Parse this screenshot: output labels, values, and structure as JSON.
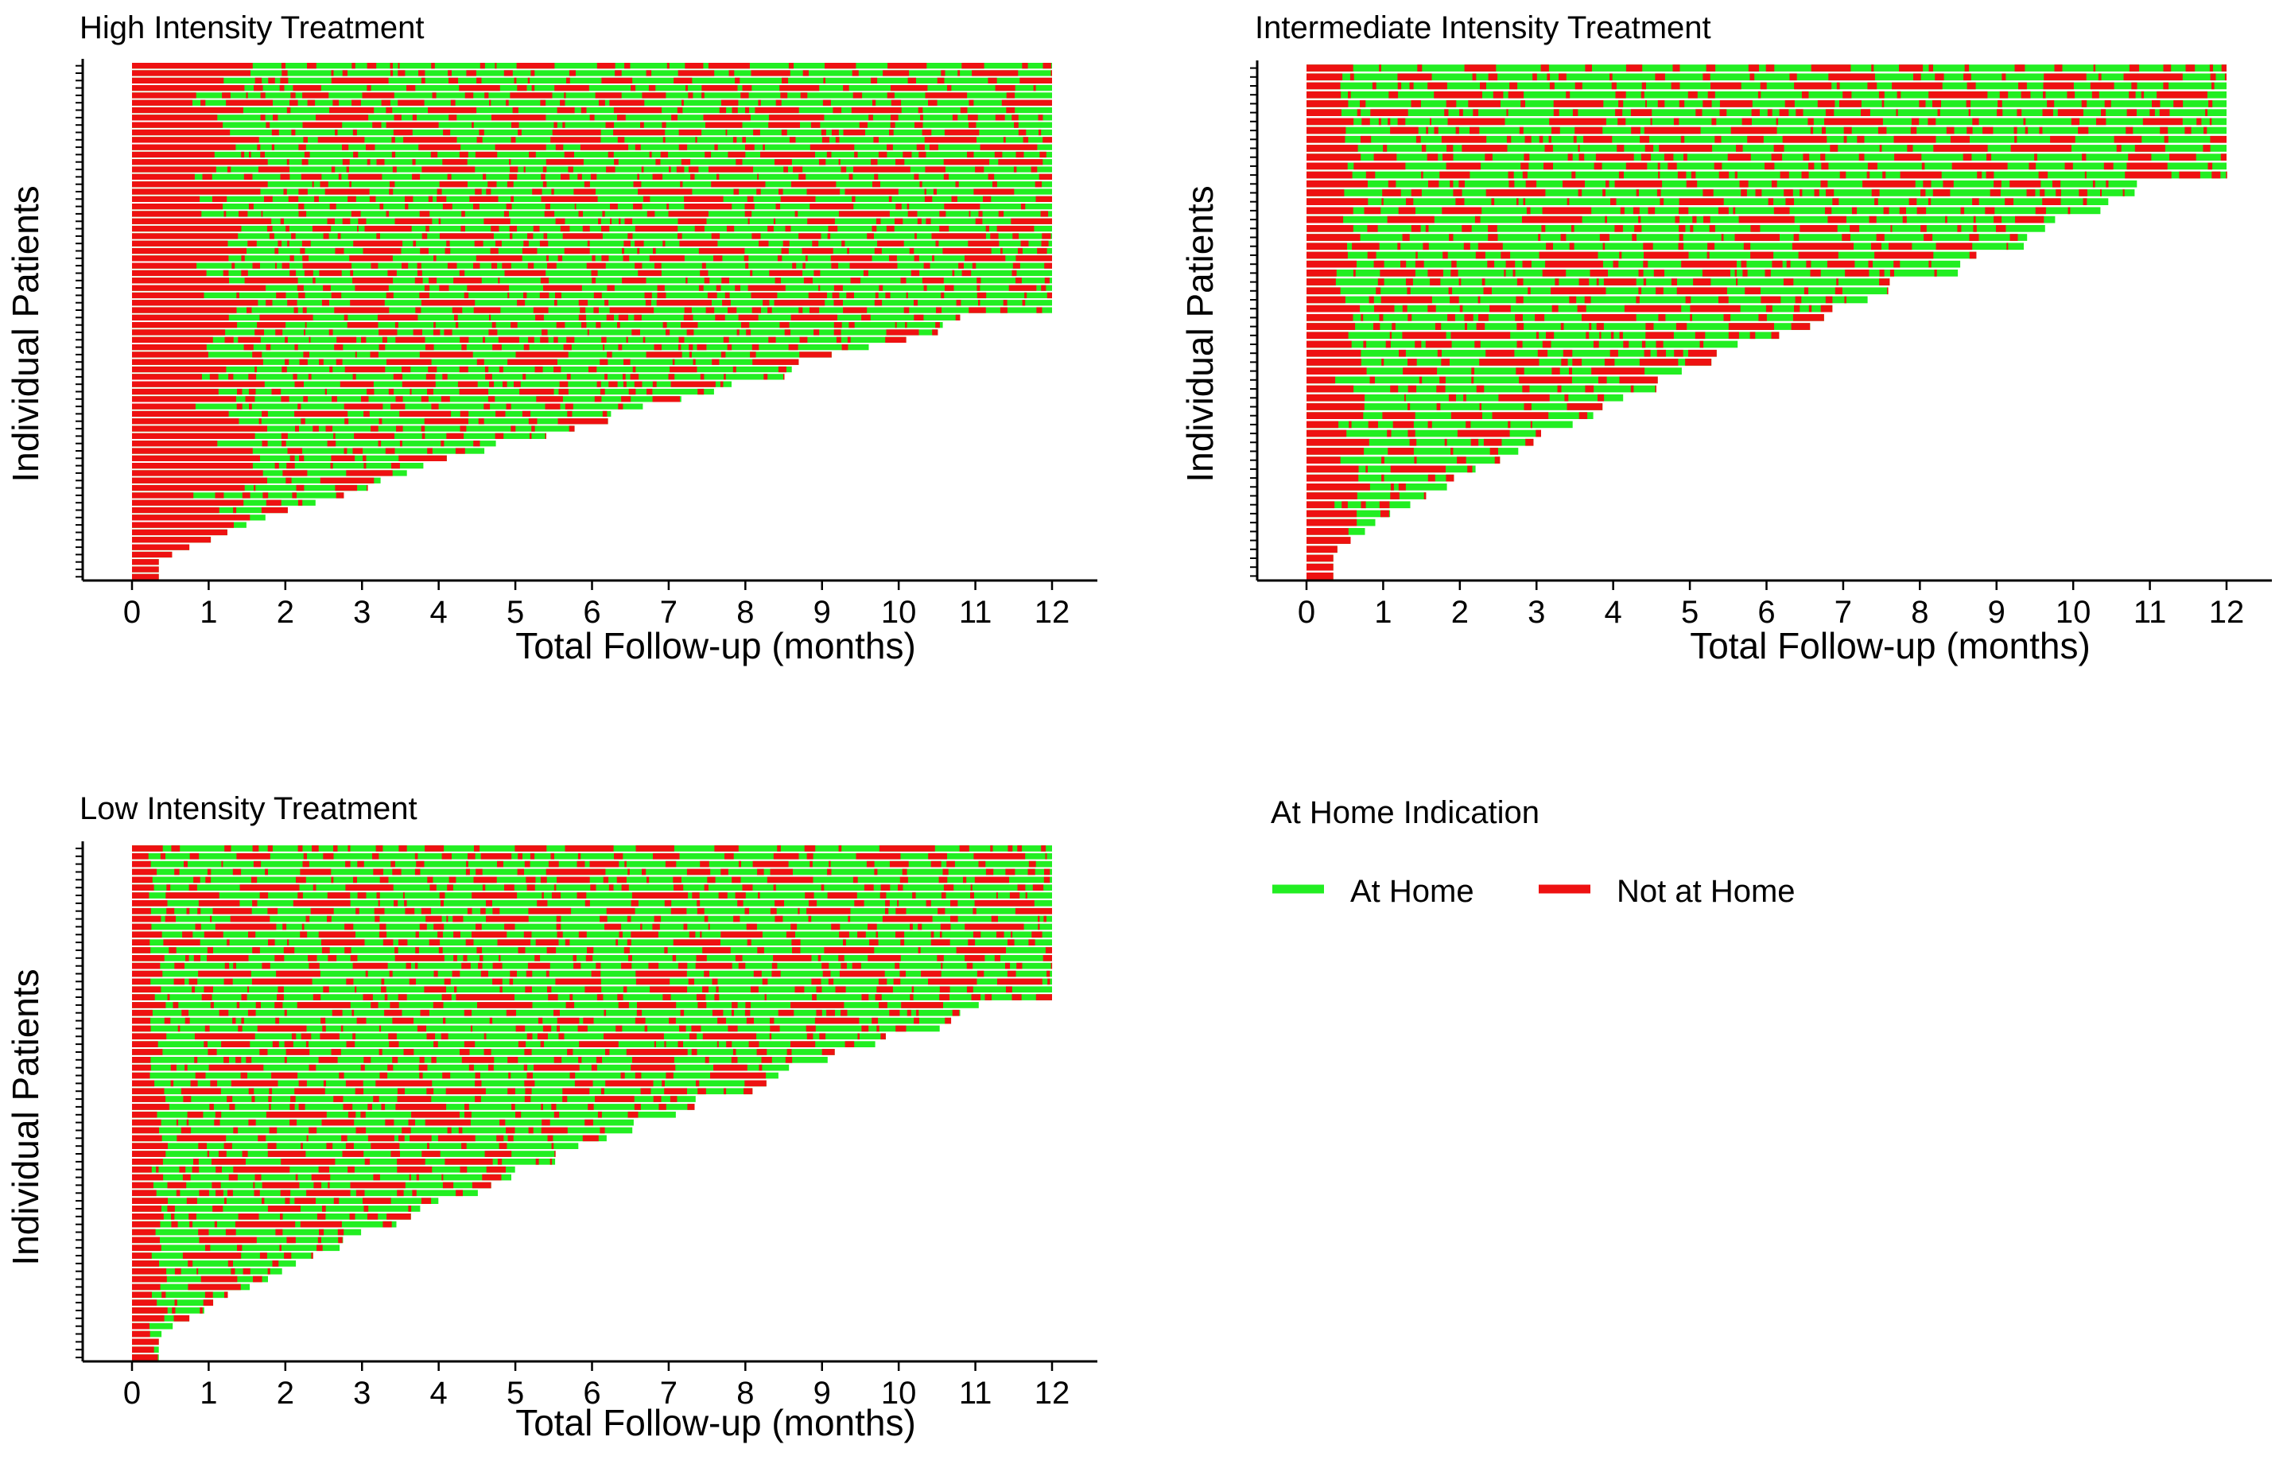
{
  "chart_data": [
    {
      "type": "swimlane",
      "title": "High Intensity Treatment",
      "xlabel": "Total Follow-up (months)",
      "ylabel": "Individual Patients",
      "xlim": [
        0,
        12
      ],
      "xticks": [
        0,
        1,
        2,
        3,
        4,
        5,
        6,
        7,
        8,
        9,
        10,
        11,
        12
      ],
      "n_patients": 70,
      "max_followup": 12,
      "censored_at_12_fraction": 0.48,
      "early_not_home_months": 1.3,
      "not_home_share_late": 0.28,
      "seed": 11
    },
    {
      "type": "swimlane",
      "title": "Intermediate Intensity Treatment",
      "xlabel": "Total Follow-up (months)",
      "ylabel": "Individual Patients",
      "xlim": [
        0,
        12
      ],
      "xticks": [
        0,
        1,
        2,
        3,
        4,
        5,
        6,
        7,
        8,
        9,
        10,
        11,
        12
      ],
      "n_patients": 58,
      "max_followup": 12,
      "censored_at_12_fraction": 0.22,
      "early_not_home_months": 0.6,
      "not_home_share_late": 0.3,
      "seed": 23
    },
    {
      "type": "swimlane",
      "title": "Low Intensity Treatment",
      "xlabel": "Total Follow-up (months)",
      "ylabel": "Individual Patients",
      "xlim": [
        0,
        12
      ],
      "xticks": [
        0,
        1,
        2,
        3,
        4,
        5,
        6,
        7,
        8,
        9,
        10,
        11,
        12
      ],
      "n_patients": 66,
      "max_followup": 12,
      "censored_at_12_fraction": 0.3,
      "early_not_home_months": 0.35,
      "not_home_share_late": 0.3,
      "seed": 37
    }
  ],
  "legend": {
    "title": "At Home Indication",
    "items": [
      {
        "label": "At Home",
        "color": "#22ee22"
      },
      {
        "label": "Not at Home",
        "color": "#ee1111"
      }
    ]
  },
  "colors": {
    "at_home": "#22ee22",
    "not_at_home": "#ee1111",
    "axis": "#000000"
  }
}
